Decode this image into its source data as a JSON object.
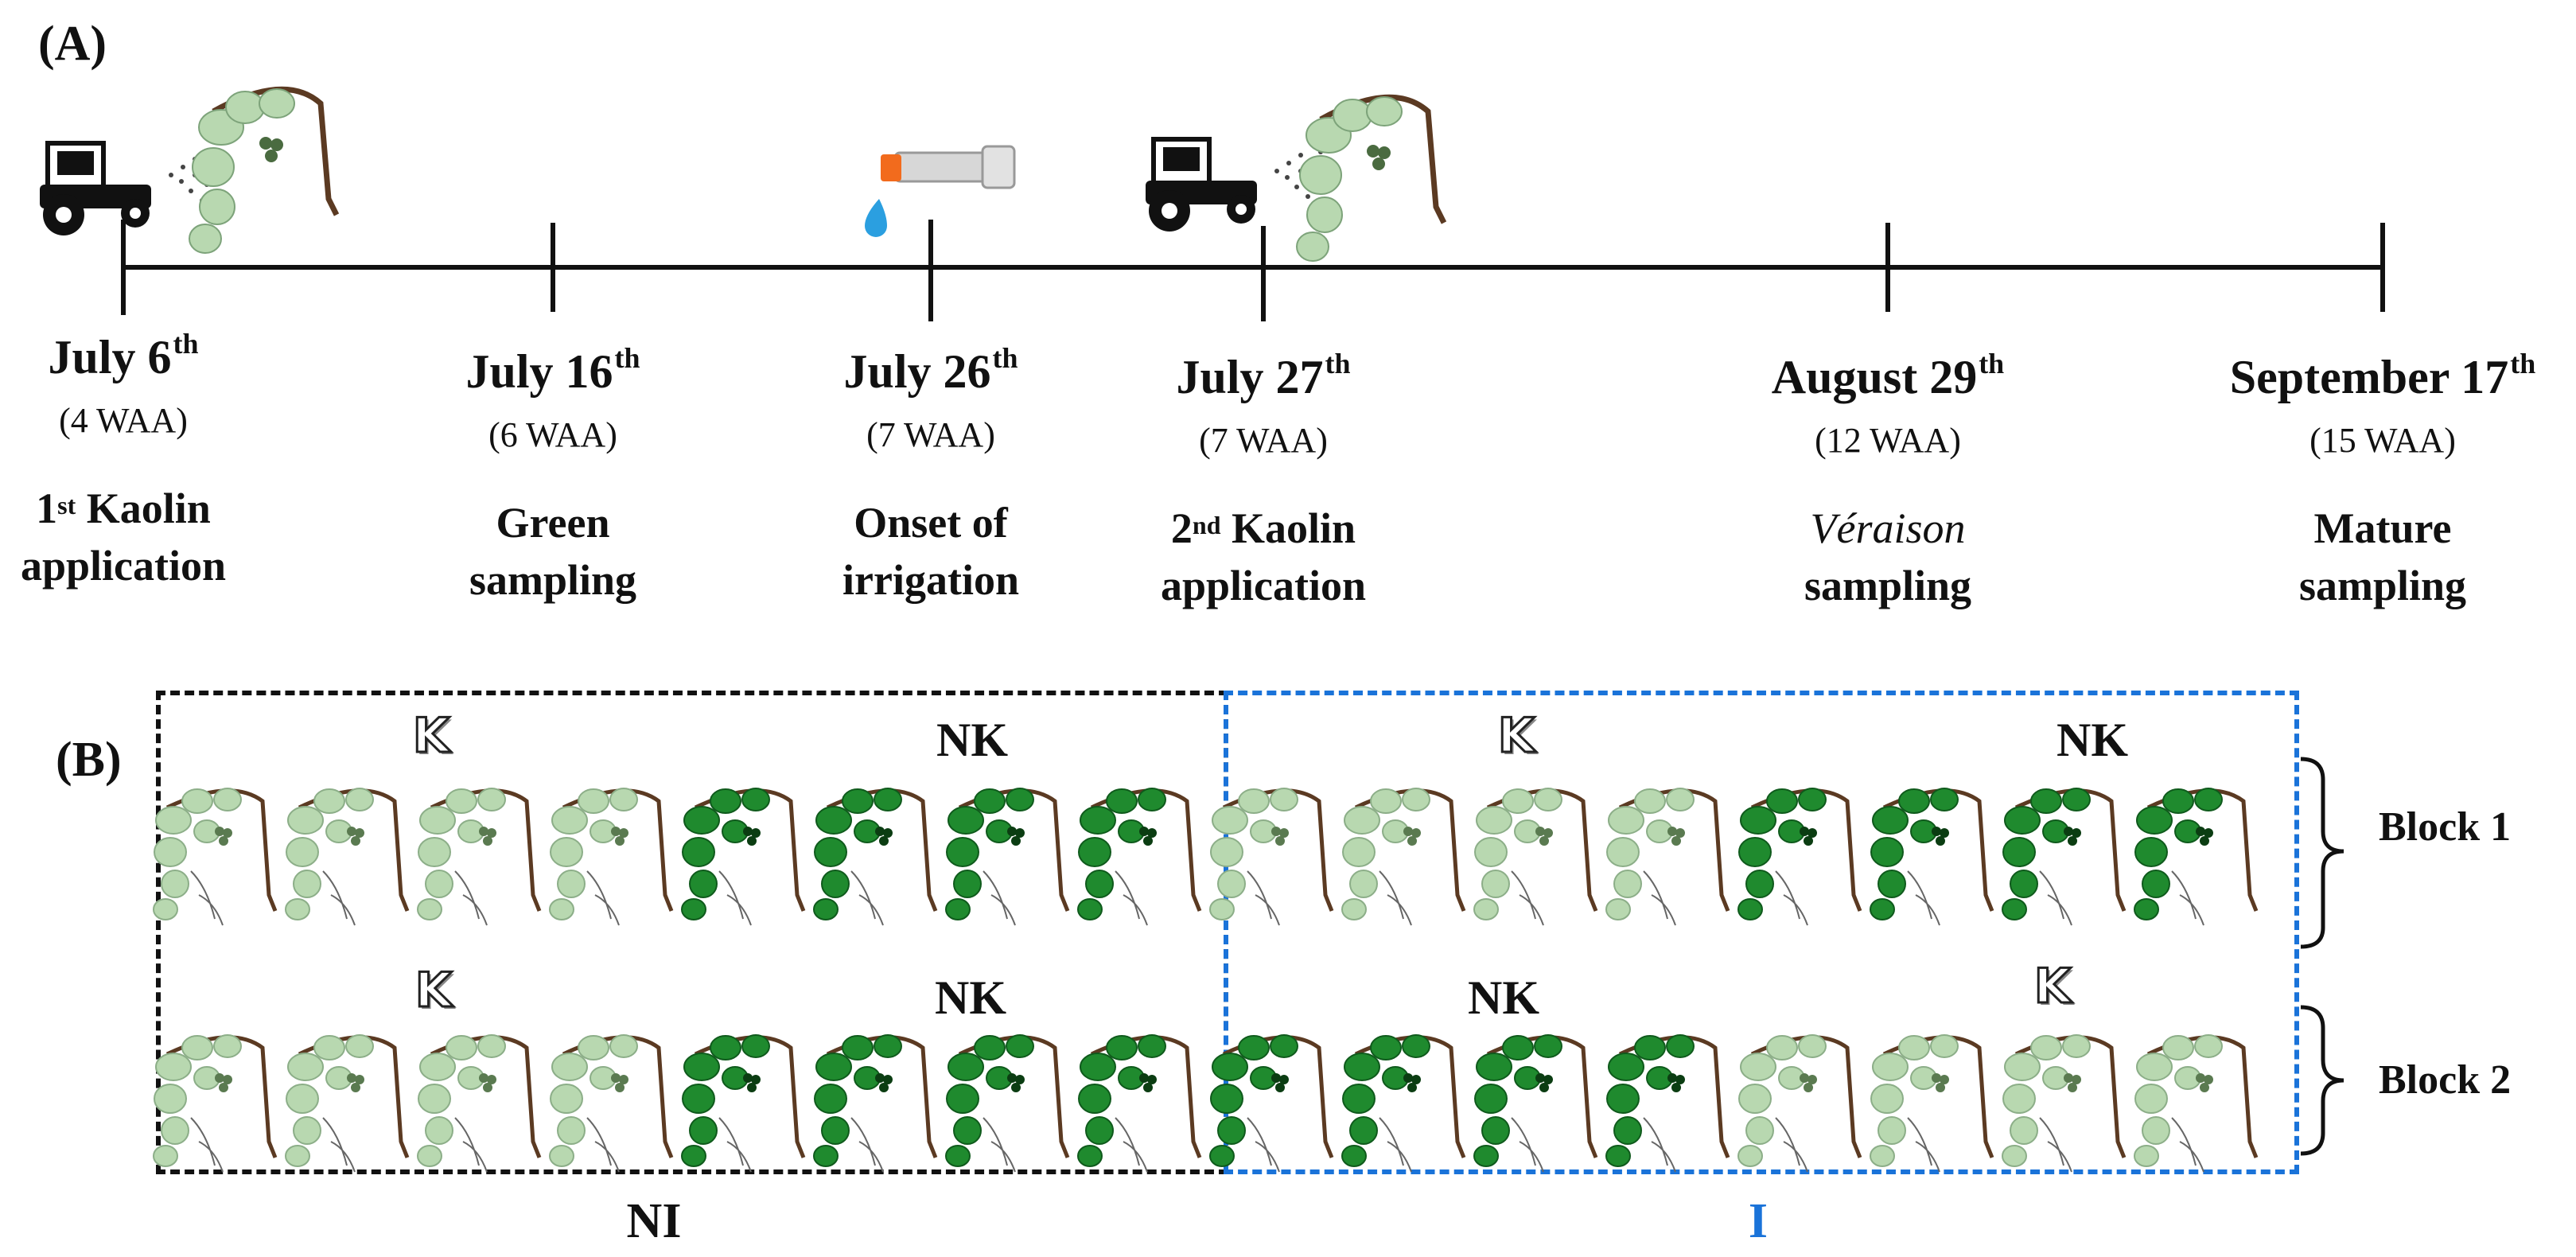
{
  "panel_a_label": "(A)",
  "panel_b_label": "(B)",
  "timeline": [
    {
      "date": "July 6",
      "sup": "th",
      "waa": "(4 WAA)",
      "event_sup_prefix": "1",
      "event_sup": "st",
      "event_line1": " Kaolin",
      "event_line2": "application",
      "icon": "tractor-spray-icon"
    },
    {
      "date": "July 16",
      "sup": "th",
      "waa": "(6 WAA)",
      "event_line1": "Green",
      "event_line2": "sampling"
    },
    {
      "date": "July 26",
      "sup": "th",
      "waa": "(7 WAA)",
      "event_line1": "Onset of",
      "event_line2": "irrigation",
      "icon": "irrigation-tap-icon"
    },
    {
      "date": "July 27",
      "sup": "th",
      "waa": "(7 WAA)",
      "event_sup_prefix": "2",
      "event_sup": "nd",
      "event_line1": " Kaolin",
      "event_line2": "application",
      "icon": "tractor-spray-icon"
    },
    {
      "date": "August 29",
      "sup": "th",
      "waa": "(12 WAA)",
      "event_line1_italic": "Véraison",
      "event_line2": "sampling"
    },
    {
      "date": "September 17",
      "sup": "th",
      "waa": "(15 WAA)",
      "event_line1": "Mature",
      "event_line2": "sampling"
    }
  ],
  "layout_b": {
    "k_symbol": "K",
    "nk_label": "NK",
    "block1_label": "Block 1",
    "block2_label": "Block 2",
    "ni_label": "NI",
    "i_label": "I",
    "block1_rows": [
      "K",
      "K",
      "K",
      "K",
      "NK",
      "NK",
      "NK",
      "NK",
      "K",
      "K",
      "K",
      "K",
      "NK",
      "NK",
      "NK",
      "NK"
    ],
    "block2_rows": [
      "K",
      "K",
      "K",
      "K",
      "NK",
      "NK",
      "NK",
      "NK",
      "NK",
      "NK",
      "NK",
      "NK",
      "K",
      "K",
      "K",
      "K"
    ]
  },
  "colors": {
    "kaolin_vine": "#b8d8b0",
    "untreated_vine": "#1f8a2e",
    "irrigated_box": "#1a73d9",
    "nonirrigated_box": "#111111"
  }
}
